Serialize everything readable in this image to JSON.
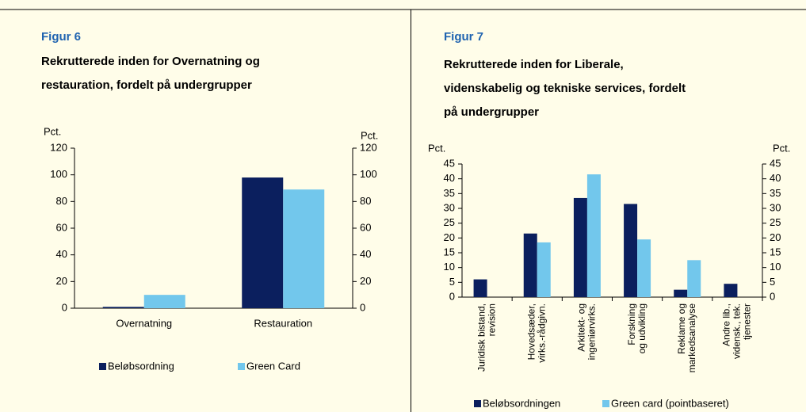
{
  "chart_data": [
    {
      "type": "bar",
      "figure": "Figur 6",
      "title": [
        "Rekrutterede inden for Overnatning og",
        "restauration,  fordelt på undergrupper"
      ],
      "ylabel": "Pct.",
      "y2label": "Pct.",
      "categories": [
        [
          "Overnatning"
        ],
        [
          "Restauration"
        ]
      ],
      "series": [
        {
          "name": "Beløbsordning",
          "color": "#0b1f5e",
          "values": [
            1,
            98
          ]
        },
        {
          "name": "Green Card",
          "color": "#72c7ec",
          "values": [
            10,
            89
          ]
        }
      ],
      "ylim": [
        0,
        120
      ],
      "yticks": [
        0,
        20,
        40,
        60,
        80,
        100,
        120
      ],
      "y2lim": [
        0,
        120
      ],
      "y2ticks": [
        0,
        20,
        40,
        60,
        80,
        100,
        120
      ]
    },
    {
      "type": "bar",
      "figure": "Figur 7",
      "title": [
        "Rekrutterede inden for Liberale,",
        "videnskabelig og tekniske services,  fordelt",
        "på undergrupper"
      ],
      "ylabel": "Pct.",
      "y2label": "Pct.",
      "categories": [
        [
          "Juridisk bistand,",
          "revision"
        ],
        [
          "Hovedsæder,",
          "virks.-rådgivn."
        ],
        [
          "Arkitekt- og",
          "ingeniørvirks."
        ],
        [
          "Forskning",
          "og udvikling"
        ],
        [
          "Reklame og",
          "markedsanalyse"
        ],
        [
          "Andre lib.,",
          "vidensk., tek.",
          "tjenester"
        ]
      ],
      "series": [
        {
          "name": "Beløbsordningen",
          "color": "#0b1f5e",
          "values": [
            6,
            21.5,
            33.5,
            31.5,
            2.5,
            4.5
          ]
        },
        {
          "name": "Green card (pointbaseret)",
          "color": "#72c7ec",
          "values": [
            0,
            18.5,
            41.5,
            19.5,
            12.5,
            0
          ]
        }
      ],
      "ylim": [
        0,
        45
      ],
      "yticks": [
        0,
        5,
        10,
        15,
        20,
        25,
        30,
        35,
        40,
        45
      ],
      "y2lim": [
        0,
        45
      ],
      "y2ticks": [
        0,
        5,
        10,
        15,
        20,
        25,
        30,
        35,
        40,
        45
      ]
    }
  ]
}
